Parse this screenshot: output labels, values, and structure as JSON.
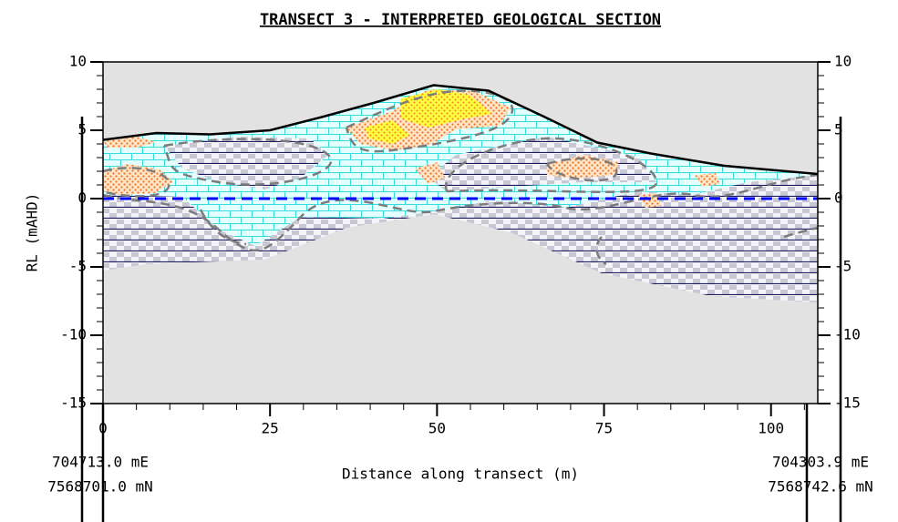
{
  "chart_data": {
    "type": "line",
    "title": "TRANSECT 3 - INTERPRETED GEOLOGICAL SECTION",
    "x_label": "Distance along transect (m)",
    "y_label": "RL (mAHD)",
    "start_label": [
      "704713.0 mE",
      "7568701.0 mN"
    ],
    "end_label": [
      "704303.9 mE",
      "7568742.6 mN"
    ],
    "x": [
      0,
      8,
      16,
      25,
      33,
      40.5,
      49.5,
      57.7,
      66,
      74,
      82,
      93,
      107
    ],
    "series": [
      {
        "color": "#000000",
        "values": [
          4.3,
          4.8,
          4.7,
          5.0,
          6.0,
          7.0,
          8.3,
          7.9,
          6.0,
          4.1,
          3.3,
          2.4,
          1.8
        ]
      },
      {
        "color": "#0000ff",
        "dashed": true,
        "values": [
          0,
          0,
          0,
          0,
          0,
          0,
          0,
          0,
          0,
          0,
          0,
          0,
          0
        ]
      }
    ],
    "xlim": [
      0,
      107
    ],
    "xticks": [
      0,
      25,
      50,
      75,
      100
    ],
    "ylim": [
      -15,
      10
    ],
    "yticks": [
      -15,
      -10,
      -5,
      0,
      5,
      10
    ]
  }
}
